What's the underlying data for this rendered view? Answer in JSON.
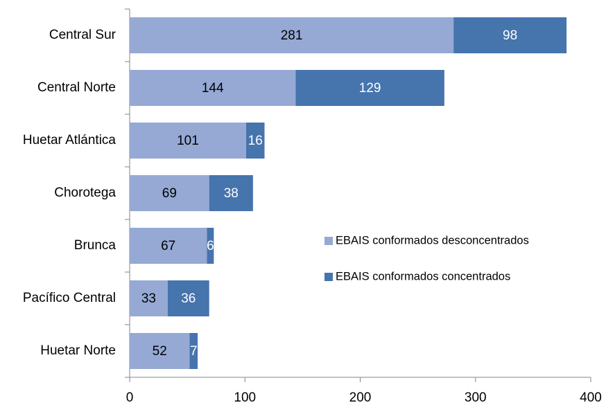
{
  "chart_data": {
    "type": "bar",
    "orientation": "horizontal",
    "stacked": true,
    "categories": [
      "Central Sur",
      "Central Norte",
      "Huetar Atlántica",
      "Chorotega",
      "Brunca",
      "Pacífico Central",
      "Huetar Norte"
    ],
    "series": [
      {
        "name": "EBAIS conformados desconcentrados",
        "color": "#95a9d4",
        "values": [
          281,
          144,
          101,
          69,
          67,
          33,
          52
        ]
      },
      {
        "name": "EBAIS conformados concentrados",
        "color": "#4674ad",
        "values": [
          98,
          129,
          16,
          38,
          6,
          36,
          7
        ]
      }
    ],
    "xlim": [
      0,
      400
    ],
    "xticks": [
      0,
      100,
      200,
      300,
      400
    ]
  }
}
